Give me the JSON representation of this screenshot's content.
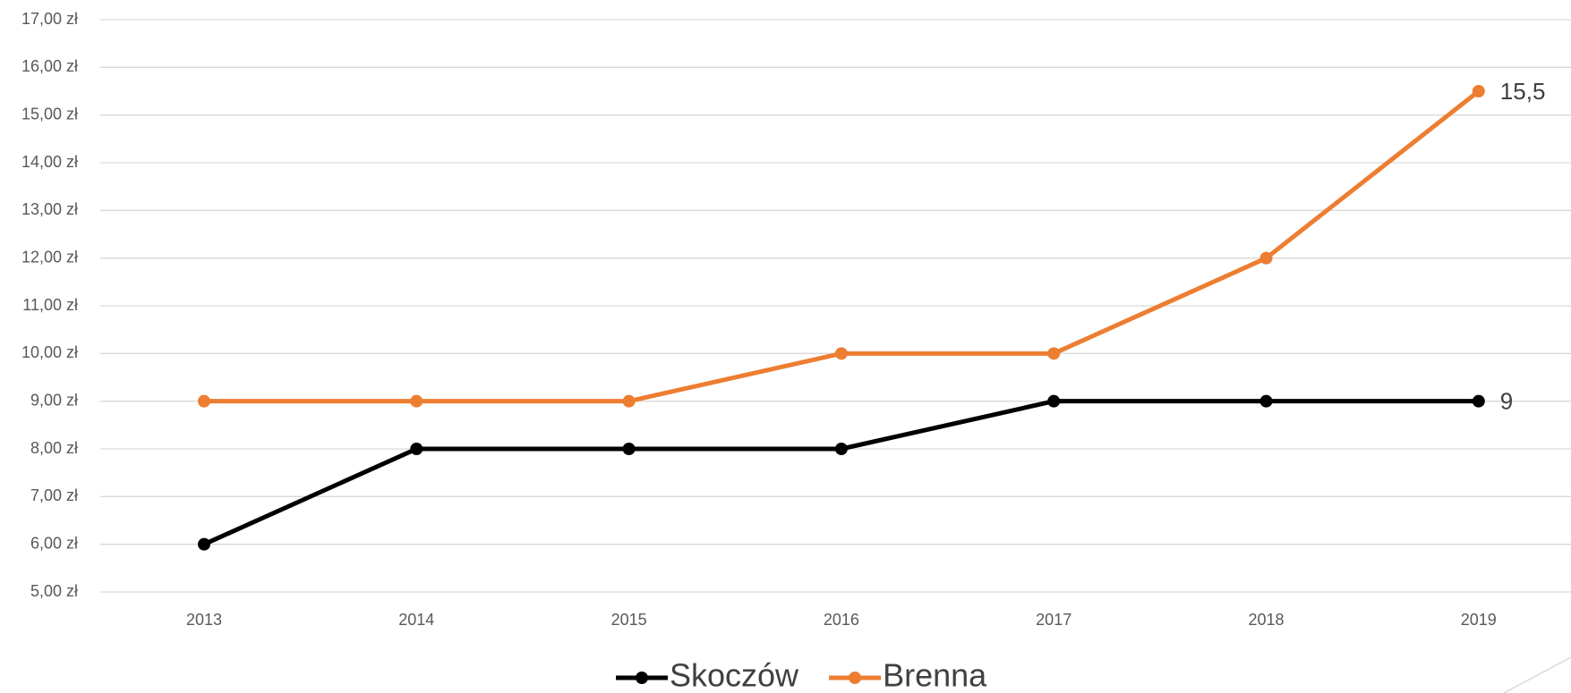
{
  "chart_data": {
    "type": "line",
    "categories": [
      "2013",
      "2014",
      "2015",
      "2016",
      "2017",
      "2018",
      "2019"
    ],
    "series": [
      {
        "name": "Skoczów",
        "color": "#000000",
        "values": [
          6,
          8,
          8,
          8,
          9,
          9,
          9
        ],
        "value_labels": [
          null,
          null,
          null,
          null,
          null,
          null,
          "9"
        ]
      },
      {
        "name": "Brenna",
        "color": "#ed7d31",
        "values": [
          9,
          9,
          9,
          10,
          10,
          12,
          15.5
        ],
        "value_labels": [
          null,
          null,
          null,
          null,
          null,
          null,
          "15,5"
        ]
      }
    ],
    "ylim": [
      5,
      17
    ],
    "yticks": [
      {
        "value": 5,
        "label": "5,00 zł"
      },
      {
        "value": 6,
        "label": "6,00 zł"
      },
      {
        "value": 7,
        "label": "7,00 zł"
      },
      {
        "value": 8,
        "label": "8,00 zł"
      },
      {
        "value": 9,
        "label": "9,00 zł"
      },
      {
        "value": 10,
        "label": "10,00 zł"
      },
      {
        "value": 11,
        "label": "11,00 zł"
      },
      {
        "value": 12,
        "label": "12,00 zł"
      },
      {
        "value": 13,
        "label": "13,00 zł"
      },
      {
        "value": 14,
        "label": "14,00 zł"
      },
      {
        "value": 15,
        "label": "15,00 zł"
      },
      {
        "value": 16,
        "label": "16,00 zł"
      },
      {
        "value": 17,
        "label": "17,00 zł"
      }
    ],
    "grid": true,
    "legend": "bottom"
  }
}
